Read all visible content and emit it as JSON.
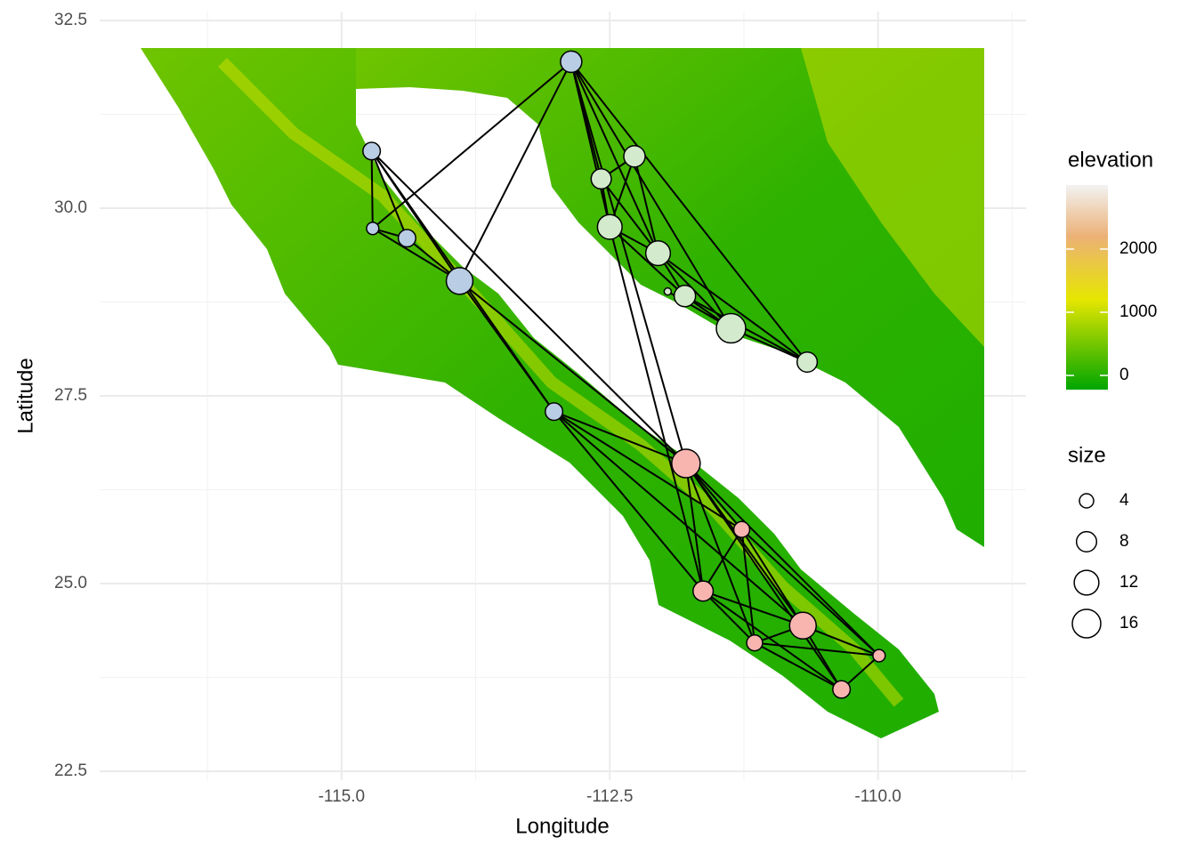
{
  "chart_data": {
    "type": "network",
    "x_label": "Longitude",
    "y_label": "Latitude",
    "xlim": [
      -117.255,
      -108.62
    ],
    "ylim": [
      22.5,
      32.5
    ],
    "xticks": [
      {
        "value": -115,
        "label": "-115.0"
      },
      -112.5,
      {
        "value": -110,
        "label": "-110.0"
      }
    ],
    "yticks": [
      22.5,
      {
        "value": 25,
        "label": "25.0"
      },
      27.5,
      {
        "value": 30,
        "label": "30.0"
      },
      32.5
    ],
    "x_minor_ticks": [
      -116.25,
      -113.75,
      -111.25,
      -108.75
    ],
    "y_minor_ticks": [
      23.75,
      26.25,
      28.75,
      31.25
    ],
    "grid": true,
    "x": [
      -112.86,
      -114.72,
      -114.71,
      -114.39,
      -113.9,
      -113.02,
      -112.58,
      -112.27,
      -112.5,
      -112.05,
      -111.96,
      -111.8,
      -111.37,
      -110.66,
      -111.79,
      -111.27,
      -111.63,
      -110.7,
      -111.15,
      -109.99,
      -110.34
    ],
    "y": [
      31.95,
      30.76,
      29.73,
      29.6,
      29.03,
      27.29,
      30.39,
      30.69,
      29.75,
      29.4,
      28.89,
      28.83,
      28.4,
      27.95,
      26.6,
      25.72,
      24.9,
      24.44,
      24.21,
      24.04,
      23.59
    ],
    "sizes": [
      9,
      6,
      3,
      6,
      14,
      6,
      8,
      9,
      12,
      12,
      1,
      9,
      17,
      8,
      16,
      5,
      8,
      14,
      5,
      3,
      6
    ],
    "colors": [
      "#b9cde4",
      "#b9cde4",
      "#b9cde4",
      "#b9cde4",
      "#b9cde4",
      "#b9cde4",
      "#d4eacd",
      "#d4eacd",
      "#d4eacd",
      "#d4eacd",
      "#d4eacd",
      "#d4eacd",
      "#d4eacd",
      "#d4eacd",
      "#f8b5b0",
      "#f8b5b0",
      "#f8b5b0",
      "#f8b5b0",
      "#f8b5b0",
      "#f8b5b0",
      "#f8b5b0"
    ],
    "edges": [
      [
        1,
        2
      ],
      [
        1,
        3
      ],
      [
        1,
        4
      ],
      [
        1,
        5
      ],
      [
        2,
        3
      ],
      [
        2,
        4
      ],
      [
        3,
        4
      ],
      [
        4,
        5
      ],
      [
        0,
        2
      ],
      [
        0,
        4
      ],
      [
        1,
        14
      ],
      [
        4,
        14
      ],
      [
        5,
        14
      ],
      [
        5,
        15
      ],
      [
        5,
        16
      ],
      [
        5,
        17
      ],
      [
        0,
        6
      ],
      [
        0,
        8
      ],
      [
        0,
        9
      ],
      [
        0,
        12
      ],
      [
        0,
        13
      ],
      [
        0,
        14
      ],
      [
        6,
        7
      ],
      [
        6,
        8
      ],
      [
        6,
        9
      ],
      [
        7,
        8
      ],
      [
        7,
        9
      ],
      [
        8,
        9
      ],
      [
        8,
        11
      ],
      [
        9,
        11
      ],
      [
        9,
        12
      ],
      [
        11,
        12
      ],
      [
        11,
        13
      ],
      [
        12,
        13
      ],
      [
        9,
        13
      ],
      [
        8,
        16
      ],
      [
        10,
        12
      ],
      [
        14,
        15
      ],
      [
        14,
        16
      ],
      [
        14,
        17
      ],
      [
        14,
        18
      ],
      [
        14,
        19
      ],
      [
        15,
        16
      ],
      [
        15,
        17
      ],
      [
        15,
        18
      ],
      [
        15,
        19
      ],
      [
        16,
        17
      ],
      [
        16,
        18
      ],
      [
        16,
        20
      ],
      [
        17,
        18
      ],
      [
        17,
        19
      ],
      [
        17,
        20
      ],
      [
        18,
        20
      ],
      [
        19,
        20
      ],
      [
        18,
        19
      ],
      [
        14,
        20
      ]
    ],
    "colorbar": {
      "title": "elevation",
      "ticks": [
        0,
        1000,
        2000
      ],
      "lim": [
        -225,
        3014
      ],
      "stops": [
        {
          "value": -225,
          "color": "#00a600"
        },
        {
          "value": 1200,
          "color": "#e6e600"
        },
        {
          "value": 2200,
          "color": "#ecb176"
        },
        {
          "value": 3014,
          "color": "#f2f2f2"
        }
      ]
    },
    "size_legend": {
      "title": "size",
      "values": [
        4,
        8,
        12,
        16
      ]
    }
  }
}
